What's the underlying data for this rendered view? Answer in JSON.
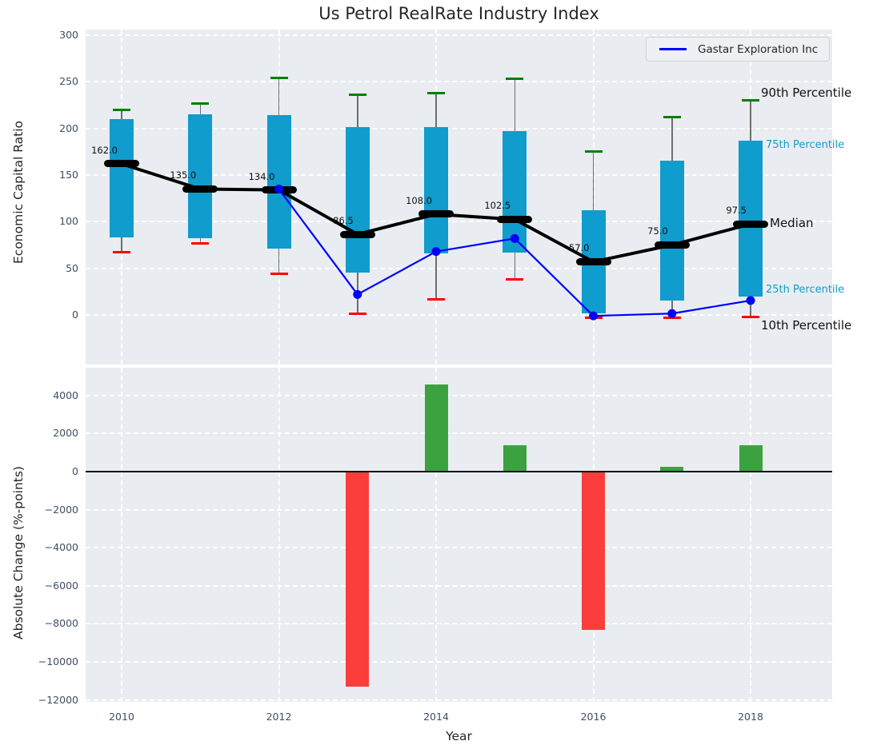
{
  "title": "Us Petrol RealRate Industry Index",
  "colors": {
    "box": "#109ccd",
    "p90_cap": "#007f00",
    "p10_cap": "#fe0000",
    "median": "#000000",
    "company_line": "#0000ff",
    "bar_positive": "#3ba23f",
    "bar_negative": "#fb3e3c",
    "percentile_label_cyan": "#119dc9",
    "axes_bg": "#e9edf1",
    "tick_label": "#3f4e66"
  },
  "chart_data": [
    {
      "type": "box-line",
      "title": "Us Petrol RealRate Industry Index",
      "ylabel": "Economic Capital Ratio",
      "years": [
        2010,
        2011,
        2012,
        2013,
        2014,
        2015,
        2016,
        2017,
        2018
      ],
      "yticks": [
        300,
        250,
        200,
        150,
        100,
        50,
        0
      ],
      "ylim": [
        -52,
        306
      ],
      "grid": true,
      "series": [
        {
          "name": "90th Percentile",
          "values": [
            220,
            227,
            254,
            236,
            238,
            253,
            175,
            212,
            230
          ]
        },
        {
          "name": "75th Percentile",
          "values": [
            210,
            215,
            214,
            201,
            201,
            197,
            112,
            165,
            187
          ]
        },
        {
          "name": "Median",
          "values": [
            162,
            135,
            134,
            86.5,
            108,
            102.5,
            57,
            75,
            97.5
          ]
        },
        {
          "name": "25th Percentile",
          "values": [
            83,
            82,
            71,
            45,
            66,
            67,
            2,
            15,
            20
          ]
        },
        {
          "name": "10th Percentile",
          "values": [
            67,
            77,
            44,
            1,
            17,
            38,
            -3,
            -3,
            -2
          ]
        }
      ],
      "median_labels": [
        "162.0",
        "135.0",
        "134.0",
        "86.5",
        "108.0",
        "102.5",
        "57.0",
        "75.0",
        "97.5"
      ],
      "company": {
        "name": "Gastar Exploration Inc",
        "years": [
          2012,
          2013,
          2014,
          2015,
          2016,
          2017,
          2018
        ],
        "values": [
          135,
          22,
          68,
          82,
          -1,
          1.5,
          15.5
        ]
      },
      "legend": {
        "label": "Gastar Exploration Inc",
        "position": "upper right"
      },
      "annotations": [
        {
          "text": "90th Percentile",
          "color": "black",
          "size": 15,
          "y_value": 237
        },
        {
          "text": "75th Percentile",
          "color": "cyan",
          "size": 13,
          "y_value": 181
        },
        {
          "text": "Median",
          "color": "black",
          "size": 15,
          "y_value": 97.5
        },
        {
          "text": "25th Percentile",
          "color": "cyan",
          "size": 13,
          "y_value": 26
        },
        {
          "text": "10th Percentile",
          "color": "black",
          "size": 15,
          "y_value": -12
        }
      ]
    },
    {
      "type": "bar",
      "ylabel": "Absolute Change (%-points)",
      "xlabel": "Year",
      "categories": [
        2013,
        2014,
        2015,
        2016,
        2017,
        2018
      ],
      "values": [
        -11300,
        4600,
        1400,
        -8300,
        250,
        1400
      ],
      "yticks": [
        4000,
        2000,
        0,
        -2000,
        -4000,
        -6000,
        -8000,
        -10000,
        -12000
      ],
      "xticks": [
        2010,
        2012,
        2014,
        2016,
        2018
      ],
      "ylim": [
        -12100,
        5400
      ],
      "grid": true
    }
  ]
}
